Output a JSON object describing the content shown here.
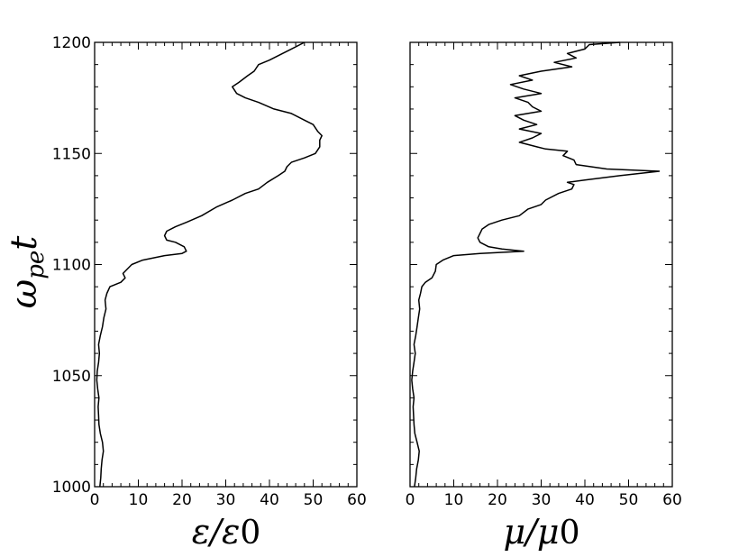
{
  "chart_data": [
    {
      "type": "line",
      "orientation": "vertical",
      "panel": "left",
      "xlabel": "ε/ε0",
      "ylabel": "ωpet",
      "xlim": [
        0,
        60
      ],
      "ylim": [
        1000,
        1200
      ],
      "xticks": [
        "0",
        "10",
        "20",
        "30",
        "40",
        "50",
        "60"
      ],
      "yticks": [
        "1000",
        "1050",
        "1100",
        "1150",
        "1200"
      ],
      "grid": false,
      "series": [
        {
          "points": [
            [
              1.2,
              1000
            ],
            [
              1.4,
              1004
            ],
            [
              1.5,
              1008
            ],
            [
              1.7,
              1012
            ],
            [
              2.0,
              1016
            ],
            [
              1.8,
              1020
            ],
            [
              1.3,
              1024
            ],
            [
              1.0,
              1028
            ],
            [
              0.9,
              1032
            ],
            [
              0.8,
              1036
            ],
            [
              1.0,
              1040
            ],
            [
              0.7,
              1044
            ],
            [
              0.5,
              1048
            ],
            [
              0.6,
              1052
            ],
            [
              0.9,
              1056
            ],
            [
              1.1,
              1060
            ],
            [
              0.9,
              1064
            ],
            [
              1.3,
              1068
            ],
            [
              1.8,
              1072
            ],
            [
              2.1,
              1076
            ],
            [
              2.6,
              1080
            ],
            [
              2.4,
              1084
            ],
            [
              2.8,
              1087
            ],
            [
              3.5,
              1090
            ],
            [
              6.0,
              1092
            ],
            [
              7.0,
              1094
            ],
            [
              6.5,
              1096
            ],
            [
              7.5,
              1098
            ],
            [
              8.5,
              1100
            ],
            [
              11,
              1102
            ],
            [
              16,
              1104
            ],
            [
              20,
              1105
            ],
            [
              21,
              1106
            ],
            [
              20.5,
              1108
            ],
            [
              18.5,
              1110
            ],
            [
              16.5,
              1111
            ],
            [
              16,
              1113
            ],
            [
              16.5,
              1115
            ],
            [
              18.5,
              1117
            ],
            [
              21,
              1119
            ],
            [
              24.5,
              1122
            ],
            [
              28,
              1126
            ],
            [
              31.5,
              1129
            ],
            [
              34.5,
              1132
            ],
            [
              37.5,
              1134
            ],
            [
              39.5,
              1137
            ],
            [
              42,
              1140
            ],
            [
              43.5,
              1142
            ],
            [
              44,
              1144
            ],
            [
              45,
              1146
            ],
            [
              48,
              1148
            ],
            [
              50.5,
              1150
            ],
            [
              51.5,
              1153
            ],
            [
              51.5,
              1156
            ],
            [
              52,
              1158
            ],
            [
              51,
              1160
            ],
            [
              50,
              1163
            ],
            [
              48,
              1165
            ],
            [
              45,
              1168
            ],
            [
              41,
              1170
            ],
            [
              37.5,
              1173
            ],
            [
              34.5,
              1175
            ],
            [
              32.5,
              1177
            ],
            [
              31.5,
              1180
            ],
            [
              33,
              1182
            ],
            [
              35,
              1185
            ],
            [
              36.5,
              1187
            ],
            [
              37.5,
              1190
            ],
            [
              40,
              1192
            ],
            [
              43,
              1195
            ],
            [
              45,
              1197
            ],
            [
              48,
              1200
            ]
          ]
        }
      ]
    },
    {
      "type": "line",
      "orientation": "vertical",
      "panel": "right",
      "xlabel": "μ/μ0",
      "xlim": [
        0,
        60
      ],
      "ylim": [
        1000,
        1200
      ],
      "xticks": [
        "0",
        "10",
        "20",
        "30",
        "40",
        "50",
        "60"
      ],
      "grid": false,
      "series": [
        {
          "points": [
            [
              1.0,
              1000
            ],
            [
              1.3,
              1004
            ],
            [
              1.5,
              1008
            ],
            [
              1.9,
              1012
            ],
            [
              2.1,
              1016
            ],
            [
              1.6,
              1020
            ],
            [
              1.1,
              1024
            ],
            [
              0.9,
              1028
            ],
            [
              0.8,
              1032
            ],
            [
              0.7,
              1036
            ],
            [
              0.9,
              1040
            ],
            [
              0.6,
              1044
            ],
            [
              0.4,
              1048
            ],
            [
              0.6,
              1052
            ],
            [
              0.9,
              1056
            ],
            [
              1.2,
              1060
            ],
            [
              0.9,
              1064
            ],
            [
              1.3,
              1068
            ],
            [
              1.6,
              1072
            ],
            [
              1.9,
              1076
            ],
            [
              2.2,
              1080
            ],
            [
              2.0,
              1084
            ],
            [
              2.4,
              1087
            ],
            [
              2.7,
              1090
            ],
            [
              3.5,
              1092
            ],
            [
              5.0,
              1094
            ],
            [
              5.8,
              1097
            ],
            [
              6.0,
              1100
            ],
            [
              7.5,
              1102
            ],
            [
              10,
              1104
            ],
            [
              16,
              1105
            ],
            [
              26,
              1106
            ],
            [
              21,
              1107
            ],
            [
              18,
              1108
            ],
            [
              16,
              1110
            ],
            [
              15.5,
              1112
            ],
            [
              16,
              1114
            ],
            [
              16.5,
              1116
            ],
            [
              18,
              1118
            ],
            [
              21,
              1120
            ],
            [
              25,
              1122
            ],
            [
              27,
              1125
            ],
            [
              30,
              1127
            ],
            [
              31,
              1129
            ],
            [
              34,
              1132
            ],
            [
              37,
              1134
            ],
            [
              37.5,
              1136
            ],
            [
              36,
              1137
            ],
            [
              40,
              1138
            ],
            [
              48,
              1140
            ],
            [
              57,
              1142
            ],
            [
              45,
              1143
            ],
            [
              38,
              1145
            ],
            [
              37.5,
              1147
            ],
            [
              35,
              1149
            ],
            [
              36,
              1151
            ],
            [
              31,
              1152
            ],
            [
              29,
              1153
            ],
            [
              27,
              1154
            ],
            [
              25,
              1155
            ],
            [
              28,
              1157
            ],
            [
              30,
              1159
            ],
            [
              25,
              1161
            ],
            [
              29,
              1163
            ],
            [
              26,
              1165
            ],
            [
              24,
              1167
            ],
            [
              30,
              1169
            ],
            [
              28,
              1171
            ],
            [
              27,
              1173
            ],
            [
              24,
              1175
            ],
            [
              30,
              1177
            ],
            [
              26,
              1179
            ],
            [
              23,
              1181
            ],
            [
              28,
              1183
            ],
            [
              25,
              1185
            ],
            [
              30,
              1187
            ],
            [
              37,
              1189
            ],
            [
              33,
              1191
            ],
            [
              38,
              1193
            ],
            [
              36,
              1195
            ],
            [
              40,
              1197
            ],
            [
              41,
              1199
            ],
            [
              48,
              1200
            ]
          ]
        }
      ]
    }
  ]
}
